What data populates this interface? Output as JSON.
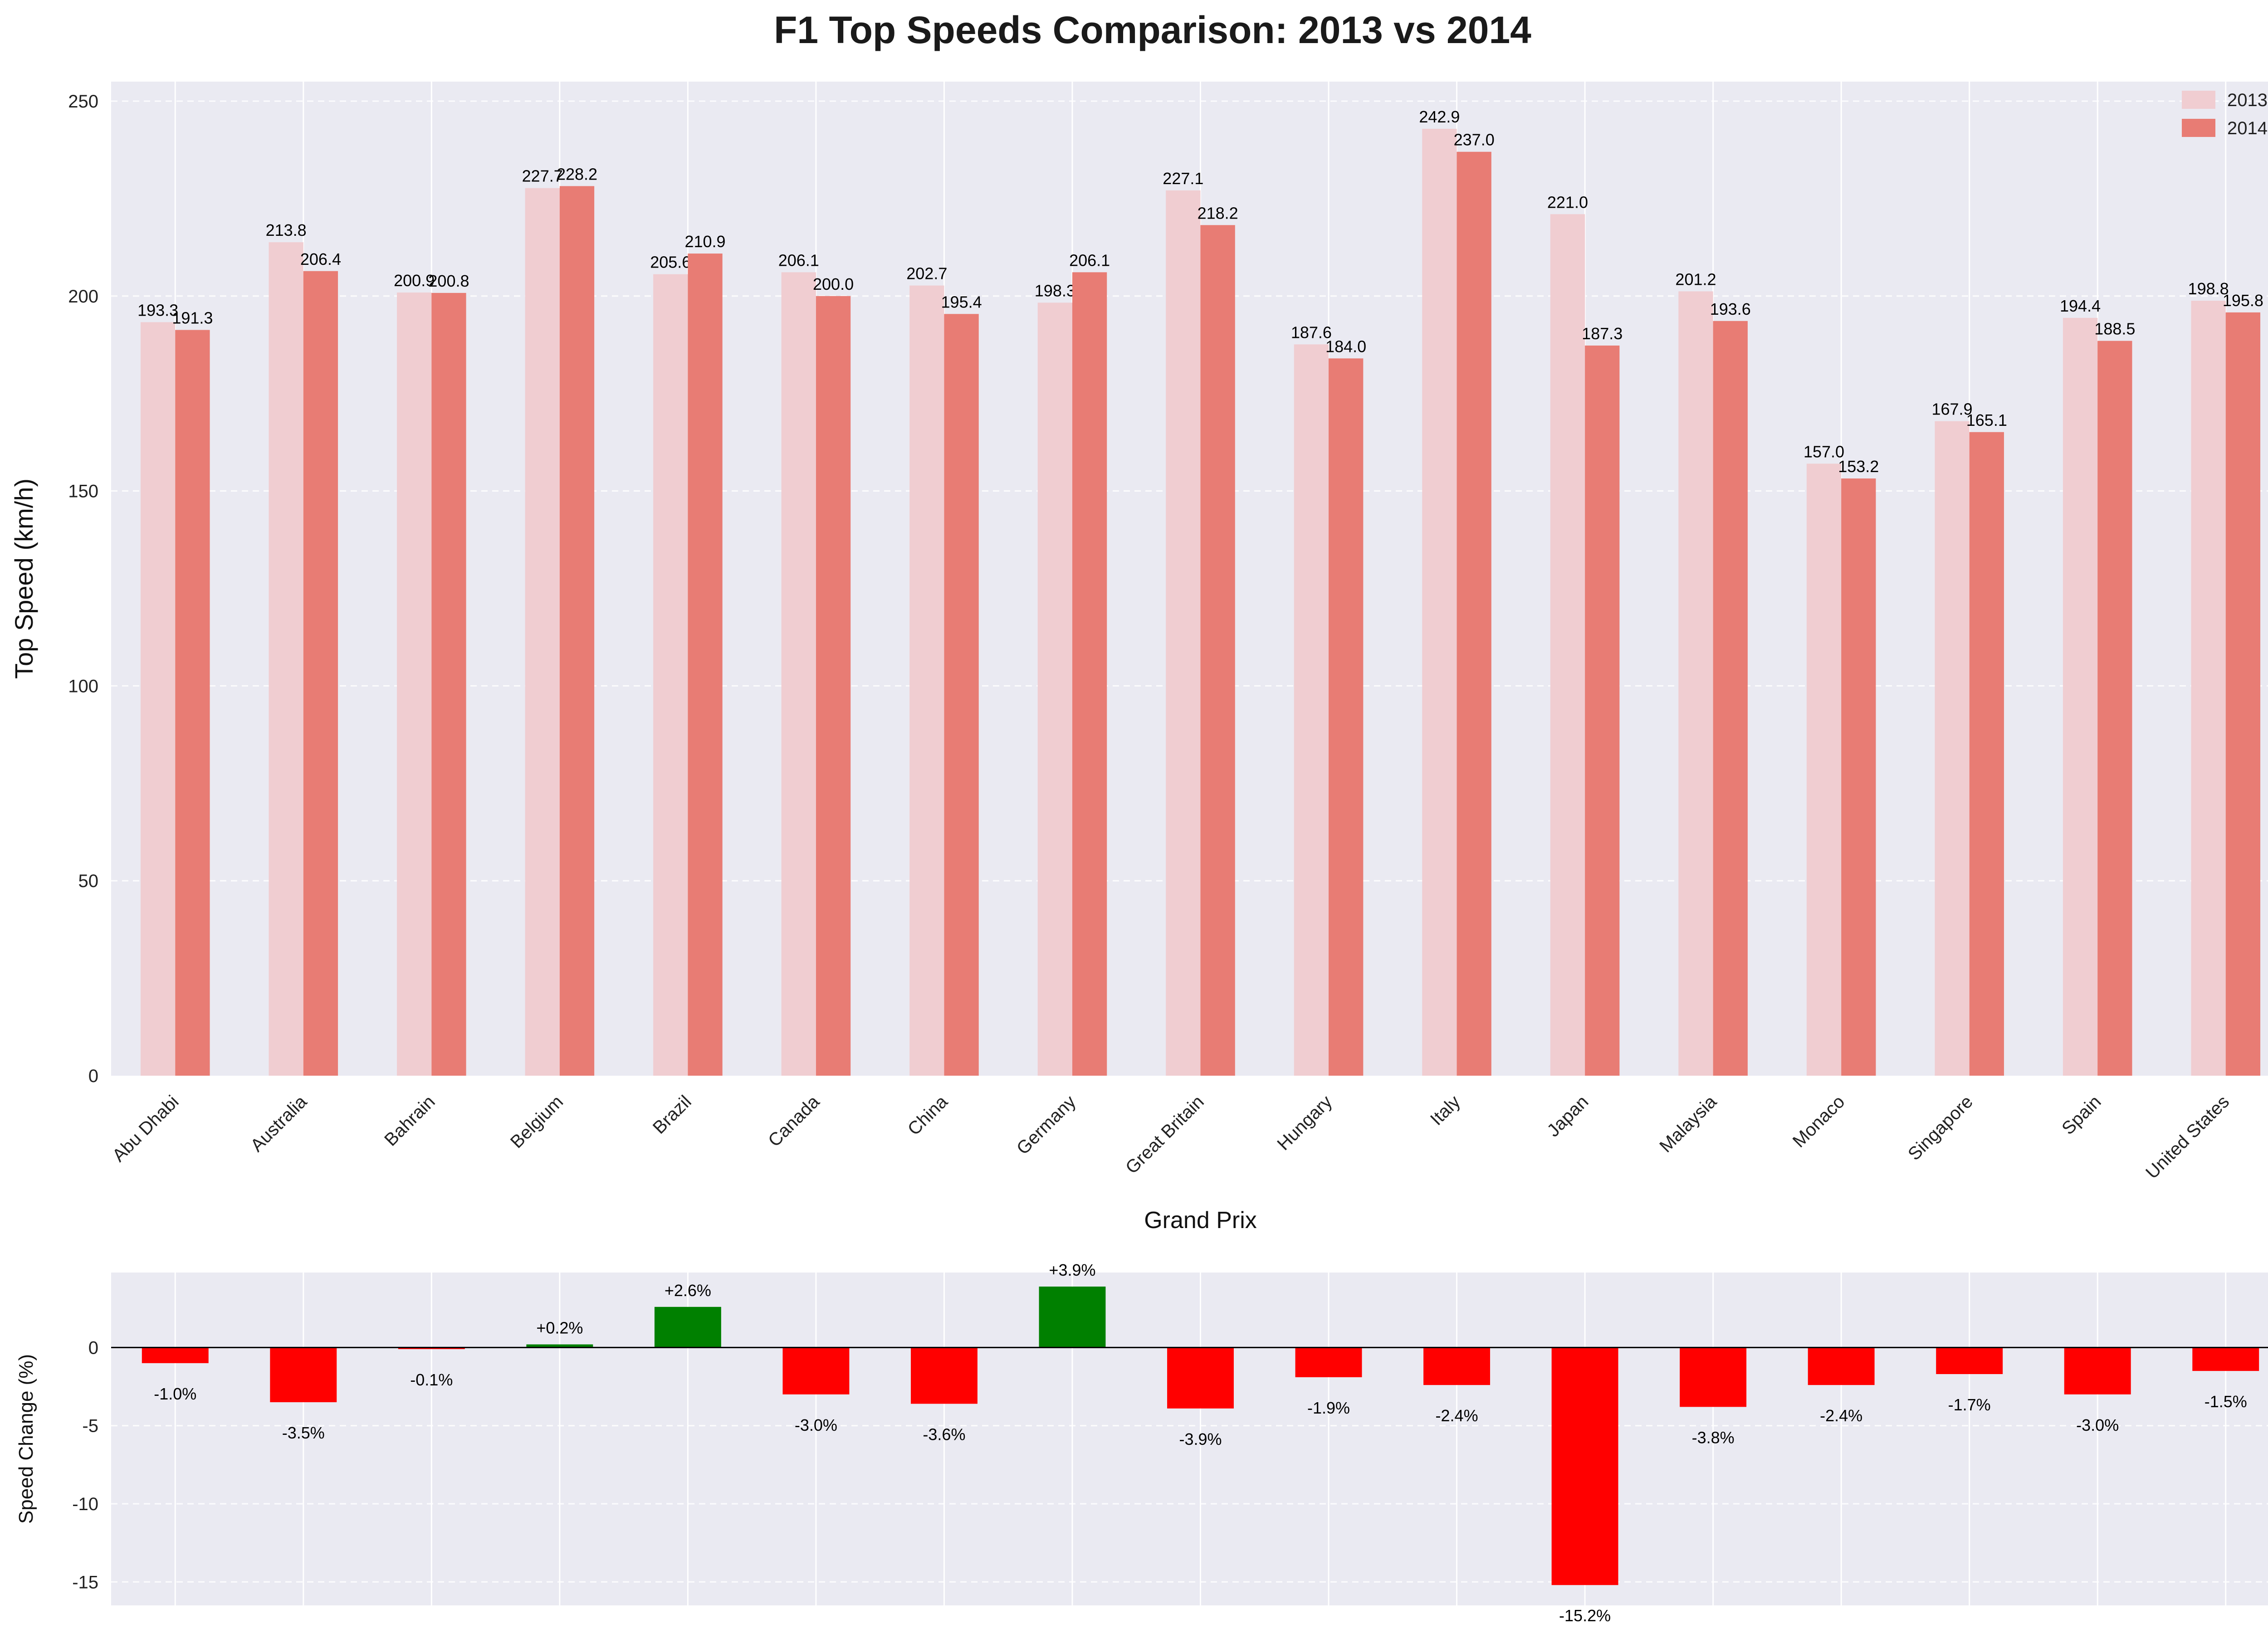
{
  "chart_data": [
    {
      "type": "bar",
      "title": "F1 Top Speeds Comparison: 2013 vs 2014",
      "xlabel": "Grand Prix",
      "ylabel": "Top Speed (km/h)",
      "ylim": [
        0,
        255
      ],
      "yticks": [
        0,
        50,
        100,
        150,
        200,
        250
      ],
      "grid": true,
      "legend_position": "top-right",
      "categories": [
        "Abu Dhabi",
        "Australia",
        "Bahrain",
        "Belgium",
        "Brazil",
        "Canada",
        "China",
        "Germany",
        "Great Britain",
        "Hungary",
        "Italy",
        "Japan",
        "Malaysia",
        "Monaco",
        "Singapore",
        "Spain",
        "United States"
      ],
      "series": [
        {
          "name": "2013",
          "color": "#f0cdd1",
          "values": [
            193.3,
            213.8,
            200.9,
            227.7,
            205.6,
            206.1,
            202.7,
            198.3,
            227.1,
            187.6,
            242.9,
            221.0,
            201.2,
            157.0,
            167.9,
            194.4,
            198.8
          ],
          "labels": [
            "193.3",
            "213.8",
            "200.9",
            "227.7",
            "205.6",
            "206.1",
            "202.7",
            "198.3",
            "227.1",
            "187.6",
            "242.9",
            "221.0",
            "201.2",
            "157.0",
            "167.9",
            "194.4",
            "198.8"
          ]
        },
        {
          "name": "2014",
          "color": "#e87c74",
          "values": [
            191.3,
            206.4,
            200.8,
            228.2,
            210.9,
            200.0,
            195.4,
            206.1,
            218.2,
            184.0,
            237.0,
            187.3,
            193.6,
            153.2,
            165.1,
            188.5,
            195.8
          ],
          "labels": [
            "191.3",
            "206.4",
            "200.8",
            "228.2",
            "210.9",
            "200.0",
            "195.4",
            "206.1",
            "218.2",
            "184.0",
            "237.0",
            "187.3",
            "193.6",
            "153.2",
            "165.1",
            "188.5",
            "195.8"
          ]
        }
      ]
    },
    {
      "type": "bar",
      "ylabel": "Speed Change (%)",
      "ylim": [
        -16.5,
        4.8
      ],
      "yticks": [
        -15,
        -10,
        -5,
        0
      ],
      "grid": true,
      "positive_color": "#008000",
      "negative_color": "#ff0000",
      "categories": [
        "Abu Dhabi",
        "Australia",
        "Bahrain",
        "Belgium",
        "Brazil",
        "Canada",
        "China",
        "Germany",
        "Great Britain",
        "Hungary",
        "Italy",
        "Japan",
        "Malaysia",
        "Monaco",
        "Singapore",
        "Spain",
        "United States"
      ],
      "values": [
        -1.0,
        -3.5,
        -0.1,
        0.2,
        2.6,
        -3.0,
        -3.6,
        3.9,
        -3.9,
        -1.9,
        -2.4,
        -15.2,
        -3.8,
        -2.4,
        -1.7,
        -3.0,
        -1.5
      ],
      "labels": [
        "-1.0%",
        "-3.5%",
        "-0.1%",
        "+0.2%",
        "+2.6%",
        "-3.0%",
        "-3.6%",
        "+3.9%",
        "-3.9%",
        "-1.9%",
        "-2.4%",
        "-15.2%",
        "-3.8%",
        "-2.4%",
        "-1.7%",
        "-3.0%",
        "-1.5%"
      ]
    }
  ]
}
